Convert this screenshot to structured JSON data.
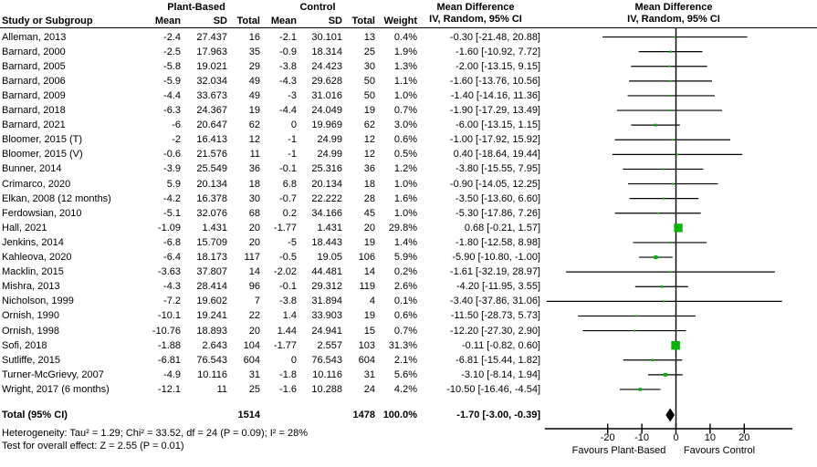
{
  "header": {
    "group1": "Plant-Based",
    "group2": "Control",
    "md_title_text_col": "Mean Difference",
    "md_subtitle_text_col": "IV, Random, 95% CI",
    "md_title_plot": "Mean Difference",
    "md_subtitle_plot": "IV, Random, 95% CI",
    "study_col": "Study or Subgroup",
    "mean1": "Mean",
    "sd1": "SD",
    "total1": "Total",
    "mean2": "Mean",
    "sd2": "SD",
    "total2": "Total",
    "weight": "Weight"
  },
  "chart_data": {
    "type": "forest",
    "effect_measure": "Mean Difference IV, Random, 95% CI",
    "marker_color": "#00b400",
    "line_color": "#000000",
    "axis": {
      "ticks": [
        -20,
        -10,
        0,
        10,
        20
      ],
      "xlim": [
        -38.4,
        34.1
      ],
      "left_label": "Favours Plant-Based",
      "right_label": "Favours Control"
    },
    "studies": [
      {
        "name": "Alleman, 2013",
        "m1": "-2.4",
        "sd1": "27.437",
        "n1": "16",
        "m2": "-2.1",
        "sd2": "30.101",
        "n2": "13",
        "w": "0.4%",
        "ci": "-0.30 [-21.48, 20.88]",
        "md": -0.3,
        "lo": -21.48,
        "hi": 20.88,
        "weight": 0.4
      },
      {
        "name": "Barnard, 2000",
        "m1": "-2.5",
        "sd1": "17.963",
        "n1": "35",
        "m2": "-0.9",
        "sd2": "18.314",
        "n2": "25",
        "w": "1.9%",
        "ci": "-1.60 [-10.92, 7.72]",
        "md": -1.6,
        "lo": -10.92,
        "hi": 7.72,
        "weight": 1.9
      },
      {
        "name": "Barnard, 2005",
        "m1": "-5.8",
        "sd1": "19.021",
        "n1": "29",
        "m2": "-3.8",
        "sd2": "24.423",
        "n2": "30",
        "w": "1.3%",
        "ci": "-2.00 [-13.15, 9.15]",
        "md": -2.0,
        "lo": -13.15,
        "hi": 9.15,
        "weight": 1.3
      },
      {
        "name": "Barnard, 2006",
        "m1": "-5.9",
        "sd1": "32.034",
        "n1": "49",
        "m2": "-4.3",
        "sd2": "29.628",
        "n2": "50",
        "w": "1.1%",
        "ci": "-1.60 [-13.76, 10.56]",
        "md": -1.6,
        "lo": -13.76,
        "hi": 10.56,
        "weight": 1.1
      },
      {
        "name": "Barnard, 2009",
        "m1": "-4.4",
        "sd1": "33.673",
        "n1": "49",
        "m2": "-3",
        "sd2": "31.016",
        "n2": "50",
        "w": "1.0%",
        "ci": "-1.40 [-14.16, 11.36]",
        "md": -1.4,
        "lo": -14.16,
        "hi": 11.36,
        "weight": 1.0
      },
      {
        "name": "Barnard, 2018",
        "m1": "-6.3",
        "sd1": "24.367",
        "n1": "19",
        "m2": "-4.4",
        "sd2": "24.049",
        "n2": "19",
        "w": "0.7%",
        "ci": "-1.90 [-17.29, 13.49]",
        "md": -1.9,
        "lo": -17.29,
        "hi": 13.49,
        "weight": 0.7
      },
      {
        "name": "Barnard, 2021",
        "m1": "-6",
        "sd1": "20.647",
        "n1": "62",
        "m2": "0",
        "sd2": "19.969",
        "n2": "62",
        "w": "3.0%",
        "ci": "-6.00 [-13.15, 1.15]",
        "md": -6.0,
        "lo": -13.15,
        "hi": 1.15,
        "weight": 3.0
      },
      {
        "name": "Bloomer, 2015 (T)",
        "m1": "-2",
        "sd1": "16.413",
        "n1": "12",
        "m2": "-1",
        "sd2": "24.99",
        "n2": "12",
        "w": "0.6%",
        "ci": "-1.00 [-17.92, 15.92]",
        "md": -1.0,
        "lo": -17.92,
        "hi": 15.92,
        "weight": 0.6
      },
      {
        "name": "Bloomer, 2015 (V)",
        "m1": "-0.6",
        "sd1": "21.576",
        "n1": "11",
        "m2": "-1",
        "sd2": "24.99",
        "n2": "12",
        "w": "0.5%",
        "ci": "0.40 [-18.64, 19.44]",
        "md": 0.4,
        "lo": -18.64,
        "hi": 19.44,
        "weight": 0.5
      },
      {
        "name": "Bunner, 2014",
        "m1": "-3.9",
        "sd1": "25.549",
        "n1": "36",
        "m2": "-0.1",
        "sd2": "25.316",
        "n2": "36",
        "w": "1.2%",
        "ci": "-3.80 [-15.55, 7.95]",
        "md": -3.8,
        "lo": -15.55,
        "hi": 7.95,
        "weight": 1.2
      },
      {
        "name": "Crimarco, 2020",
        "m1": "5.9",
        "sd1": "20.134",
        "n1": "18",
        "m2": "6.8",
        "sd2": "20.134",
        "n2": "18",
        "w": "1.0%",
        "ci": "-0.90 [-14.05, 12.25]",
        "md": -0.9,
        "lo": -14.05,
        "hi": 12.25,
        "weight": 1.0
      },
      {
        "name": "Elkan, 2008 (12 months)",
        "m1": "-4.2",
        "sd1": "16.378",
        "n1": "30",
        "m2": "-0.7",
        "sd2": "22.222",
        "n2": "28",
        "w": "1.6%",
        "ci": "-3.50 [-13.60, 6.60]",
        "md": -3.5,
        "lo": -13.6,
        "hi": 6.6,
        "weight": 1.6
      },
      {
        "name": "Ferdowsian, 2010",
        "m1": "-5.1",
        "sd1": "32.076",
        "n1": "68",
        "m2": "0.2",
        "sd2": "34.166",
        "n2": "45",
        "w": "1.0%",
        "ci": "-5.30 [-17.86, 7.26]",
        "md": -5.3,
        "lo": -17.86,
        "hi": 7.26,
        "weight": 1.0
      },
      {
        "name": "Hall, 2021",
        "m1": "-1.09",
        "sd1": "1.431",
        "n1": "20",
        "m2": "-1.77",
        "sd2": "1.431",
        "n2": "20",
        "w": "29.8%",
        "ci": "0.68 [-0.21, 1.57]",
        "md": 0.68,
        "lo": -0.21,
        "hi": 1.57,
        "weight": 29.8
      },
      {
        "name": "Jenkins, 2014",
        "m1": "-6.8",
        "sd1": "15.709",
        "n1": "20",
        "m2": "-5",
        "sd2": "18.443",
        "n2": "19",
        "w": "1.4%",
        "ci": "-1.80 [-12.58, 8.98]",
        "md": -1.8,
        "lo": -12.58,
        "hi": 8.98,
        "weight": 1.4
      },
      {
        "name": "Kahleova, 2020",
        "m1": "-6.4",
        "sd1": "18.173",
        "n1": "117",
        "m2": "-0.5",
        "sd2": "19.05",
        "n2": "106",
        "w": "5.9%",
        "ci": "-5.90 [-10.80, -1.00]",
        "md": -5.9,
        "lo": -10.8,
        "hi": -1.0,
        "weight": 5.9
      },
      {
        "name": "Macklin, 2015",
        "m1": "-3.63",
        "sd1": "37.807",
        "n1": "14",
        "m2": "-2.02",
        "sd2": "44.481",
        "n2": "14",
        "w": "0.2%",
        "ci": "-1.61 [-32.19, 28.97]",
        "md": -1.61,
        "lo": -32.19,
        "hi": 28.97,
        "weight": 0.2
      },
      {
        "name": "Mishra, 2013",
        "m1": "-4.3",
        "sd1": "28.414",
        "n1": "96",
        "m2": "-0.1",
        "sd2": "29.312",
        "n2": "119",
        "w": "2.6%",
        "ci": "-4.20 [-11.95, 3.55]",
        "md": -4.2,
        "lo": -11.95,
        "hi": 3.55,
        "weight": 2.6
      },
      {
        "name": "Nicholson, 1999",
        "m1": "-7.2",
        "sd1": "19.602",
        "n1": "7",
        "m2": "-3.8",
        "sd2": "31.894",
        "n2": "4",
        "w": "0.1%",
        "ci": "-3.40 [-37.86, 31.06]",
        "md": -3.4,
        "lo": -37.86,
        "hi": 31.06,
        "weight": 0.1
      },
      {
        "name": "Ornish, 1990",
        "m1": "-10.1",
        "sd1": "19.241",
        "n1": "22",
        "m2": "1.4",
        "sd2": "33.903",
        "n2": "19",
        "w": "0.6%",
        "ci": "-11.50 [-28.73, 5.73]",
        "md": -11.5,
        "lo": -28.73,
        "hi": 5.73,
        "weight": 0.6
      },
      {
        "name": "Ornish, 1998",
        "m1": "-10.76",
        "sd1": "18.893",
        "n1": "20",
        "m2": "1.44",
        "sd2": "24.941",
        "n2": "15",
        "w": "0.7%",
        "ci": "-12.20 [-27.30, 2.90]",
        "md": -12.2,
        "lo": -27.3,
        "hi": 2.9,
        "weight": 0.7
      },
      {
        "name": "Sofi, 2018",
        "m1": "-1.88",
        "sd1": "2.643",
        "n1": "104",
        "m2": "-1.77",
        "sd2": "2.557",
        "n2": "103",
        "w": "31.3%",
        "ci": "-0.11 [-0.82, 0.60]",
        "md": -0.11,
        "lo": -0.82,
        "hi": 0.6,
        "weight": 31.3
      },
      {
        "name": "Sutliffe, 2015",
        "m1": "-6.81",
        "sd1": "76.543",
        "n1": "604",
        "m2": "0",
        "sd2": "76.543",
        "n2": "604",
        "w": "2.1%",
        "ci": "-6.81 [-15.44, 1.82]",
        "md": -6.81,
        "lo": -15.44,
        "hi": 1.82,
        "weight": 2.1
      },
      {
        "name": "Turner-McGrievy, 2007",
        "m1": "-4.9",
        "sd1": "10.116",
        "n1": "31",
        "m2": "-1.8",
        "sd2": "10.116",
        "n2": "31",
        "w": "5.6%",
        "ci": "-3.10 [-8.14, 1.94]",
        "md": -3.1,
        "lo": -8.14,
        "hi": 1.94,
        "weight": 5.6
      },
      {
        "name": "Wright, 2017 (6 months)",
        "m1": "-12.1",
        "sd1": "11",
        "n1": "25",
        "m2": "-1.6",
        "sd2": "10.288",
        "n2": "24",
        "w": "4.2%",
        "ci": "-10.50 [-16.46, -4.54]",
        "md": -10.5,
        "lo": -16.46,
        "hi": -4.54,
        "weight": 4.2
      }
    ],
    "total": {
      "label": "Total (95% CI)",
      "n1": "1514",
      "n2": "1478",
      "w": "100.0%",
      "ci": "-1.70 [-3.00, -0.39]",
      "md": -1.7,
      "lo": -3.0,
      "hi": -0.39
    }
  },
  "footer": {
    "heterogeneity": "Heterogeneity: Tau² = 1.29; Chi² = 33.52, df = 24 (P = 0.09); I² = 28%",
    "overall_effect": "Test for overall effect: Z = 2.55 (P = 0.01)"
  }
}
